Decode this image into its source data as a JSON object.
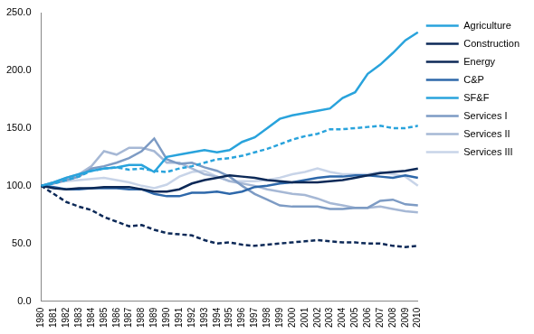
{
  "chart_data": {
    "type": "line",
    "categories": [
      "1980",
      "1981",
      "1982",
      "1983",
      "1984",
      "1985",
      "1986",
      "1987",
      "1988",
      "1989",
      "1990",
      "1991",
      "1992",
      "1993",
      "1994",
      "1995",
      "1996",
      "1997",
      "1998",
      "1999",
      "2000",
      "2001",
      "2002",
      "2003",
      "2004",
      "2005",
      "2006",
      "2007",
      "2008",
      "2009",
      "2010"
    ],
    "ylim": [
      0,
      250
    ],
    "yticks": [
      {
        "value": 0,
        "label": "0.0"
      },
      {
        "value": 50,
        "label": "50.0"
      },
      {
        "value": 100,
        "label": "100.0"
      },
      {
        "value": 150,
        "label": "150.0"
      },
      {
        "value": 200,
        "label": "200.0"
      },
      {
        "value": 250,
        "label": "250.0"
      }
    ],
    "grid": false,
    "legend": "right",
    "series": [
      {
        "name": "Agriculture",
        "color": "#29a3dc",
        "line_style": "solid",
        "marker": "none",
        "values": [
          100,
          103,
          107,
          110,
          113,
          115,
          116,
          118,
          118,
          112,
          125,
          127,
          129,
          131,
          129,
          131,
          138,
          142,
          150,
          158,
          161,
          163,
          165,
          167,
          176,
          181,
          197,
          205,
          215,
          226,
          233
        ]
      },
      {
        "name": "Construction",
        "color": "#0c2957",
        "line_style": "solid",
        "marker": "none",
        "values": [
          100,
          98,
          97,
          98,
          98,
          99,
          99,
          99,
          97,
          95,
          95,
          97,
          102,
          105,
          107,
          109,
          108,
          107,
          105,
          104,
          103,
          103,
          103,
          104,
          105,
          107,
          109,
          111,
          112,
          113,
          115
        ]
      },
      {
        "name": "Energy",
        "color": "#0c2957",
        "line_style": "dashed",
        "marker": "none",
        "values": [
          100,
          93,
          86,
          82,
          79,
          73,
          69,
          65,
          66,
          62,
          59,
          58,
          57,
          53,
          50,
          51,
          49,
          48,
          49,
          50,
          51,
          52,
          53,
          52,
          51,
          51,
          50,
          50,
          48,
          47,
          48
        ]
      },
      {
        "name": "C&P",
        "color": "#2e68aa",
        "line_style": "solid",
        "marker": "none",
        "values": [
          100,
          99,
          97,
          97,
          98,
          98,
          98,
          97,
          97,
          93,
          91,
          91,
          94,
          94,
          95,
          93,
          95,
          99,
          100,
          102,
          103,
          105,
          107,
          108,
          108,
          109,
          109,
          108,
          107,
          109,
          107
        ]
      },
      {
        "name": "SF&F",
        "color": "#29a3dc",
        "line_style": "dashed",
        "marker": "none",
        "values": [
          100,
          102,
          105,
          108,
          113,
          115,
          116,
          114,
          115,
          113,
          112,
          115,
          117,
          120,
          123,
          124,
          126,
          129,
          132,
          136,
          140,
          143,
          145,
          149,
          149,
          150,
          151,
          152,
          150,
          150,
          152
        ]
      },
      {
        "name": "Services I",
        "color": "#7d9bc4",
        "line_style": "solid",
        "marker": "none",
        "values": [
          100,
          102,
          105,
          108,
          115,
          117,
          120,
          124,
          130,
          141,
          123,
          119,
          120,
          116,
          113,
          108,
          100,
          93,
          88,
          83,
          82,
          82,
          82,
          80,
          80,
          81,
          81,
          87,
          88,
          84,
          83
        ]
      },
      {
        "name": "Services II",
        "color": "#a6b8d5",
        "line_style": "solid",
        "marker": "none",
        "values": [
          100,
          103,
          107,
          110,
          117,
          130,
          127,
          133,
          133,
          130,
          120,
          120,
          115,
          110,
          108,
          104,
          102,
          100,
          97,
          95,
          93,
          92,
          89,
          85,
          83,
          81,
          81,
          82,
          80,
          78,
          77
        ]
      },
      {
        "name": "Services III",
        "color": "#c8d4e8",
        "line_style": "solid",
        "marker": "none",
        "values": [
          100,
          103,
          104,
          105,
          106,
          107,
          105,
          103,
          100,
          98,
          101,
          108,
          112,
          113,
          108,
          104,
          104,
          104,
          105,
          107,
          110,
          112,
          115,
          112,
          110,
          110,
          110,
          112,
          110,
          108,
          100
        ]
      }
    ]
  }
}
